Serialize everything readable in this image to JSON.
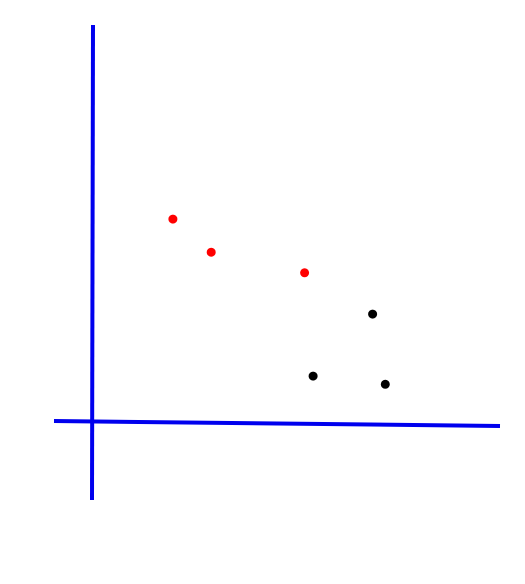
{
  "chart_data": {
    "type": "scatter",
    "grid": false,
    "legend": "none",
    "axis_color": "#0000ee",
    "xlim": [
      -0.9,
      9.6
    ],
    "ylim": [
      -1.8,
      9.7
    ],
    "series": [
      {
        "color": "#ff0000",
        "points": [
          [
            1.9,
            5.0
          ],
          [
            2.8,
            4.2
          ],
          [
            5.0,
            3.7
          ]
        ]
      },
      {
        "color": "#000000",
        "points": [
          [
            6.6,
            2.7
          ],
          [
            5.2,
            1.2
          ],
          [
            6.9,
            1.0
          ]
        ]
      }
    ]
  }
}
